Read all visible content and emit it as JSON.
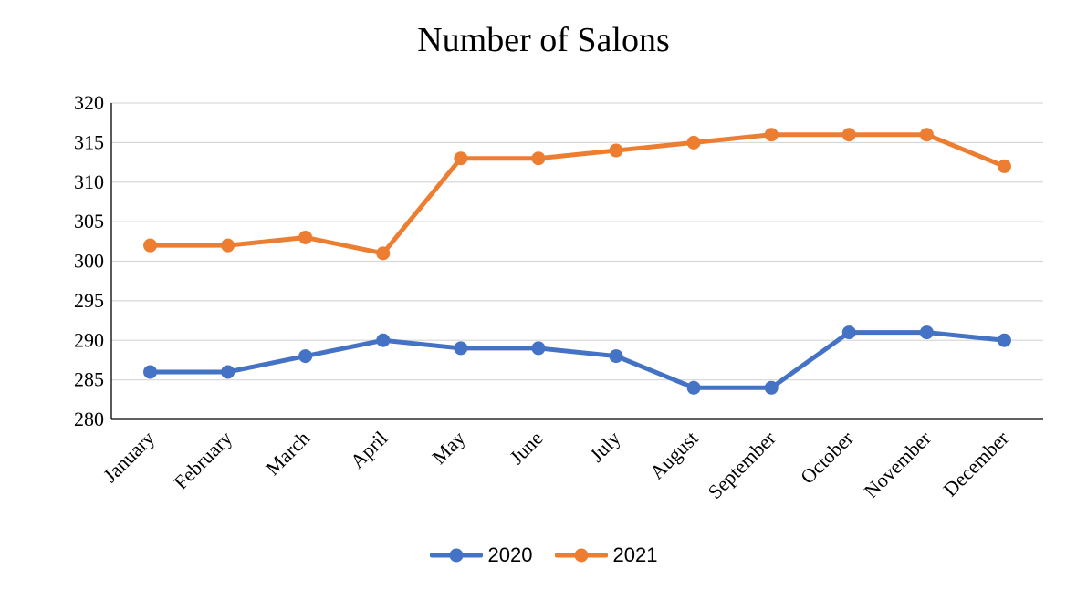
{
  "chart_data": {
    "type": "line",
    "title": "Number of Salons",
    "xlabel": "",
    "ylabel": "",
    "categories": [
      "January",
      "February",
      "March",
      "April",
      "May",
      "June",
      "July",
      "August",
      "September",
      "October",
      "November",
      "December"
    ],
    "series": [
      {
        "name": "2020",
        "color": "#4472C4",
        "values": [
          286,
          286,
          288,
          290,
          289,
          289,
          288,
          284,
          284,
          291,
          291,
          290
        ]
      },
      {
        "name": "2021",
        "color": "#ED7D31",
        "values": [
          302,
          302,
          303,
          301,
          313,
          313,
          314,
          315,
          316,
          316,
          316,
          312
        ]
      }
    ],
    "ylim": [
      280,
      320
    ],
    "yticks": [
      280,
      285,
      290,
      295,
      300,
      305,
      310,
      315,
      320
    ],
    "grid": true,
    "legend_position": "bottom",
    "x_tick_rotation": "diagonal"
  }
}
